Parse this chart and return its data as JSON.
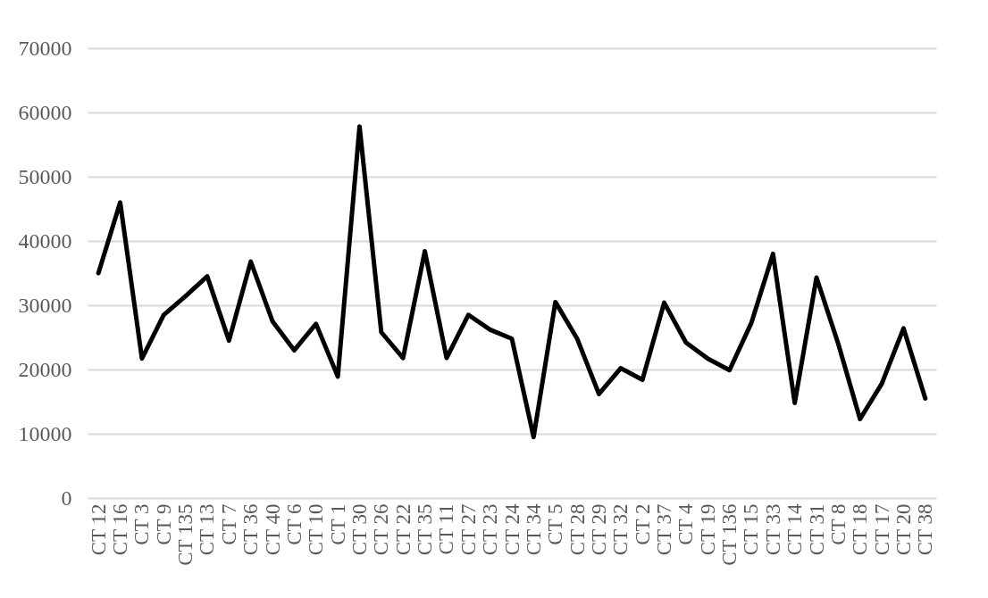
{
  "chart_data": {
    "type": "line",
    "categories": [
      "CT 12",
      "CT 16",
      "CT 3",
      "CT 9",
      "CT 135",
      "CT 13",
      "CT 7",
      "CT 36",
      "CT 40",
      "CT 6",
      "CT 10",
      "CT 1",
      "CT 30",
      "CT 26",
      "CT 22",
      "CT 35",
      "CT 11",
      "CT 27",
      "CT 23",
      "CT 24",
      "CT 34",
      "CT 5",
      "CT 28",
      "CT 29",
      "CT 32",
      "CT 2",
      "CT 37",
      "CT 4",
      "CT 19",
      "CT 136",
      "CT 15",
      "CT 33",
      "CT 14",
      "CT 31",
      "CT 8",
      "CT 18",
      "CT 17",
      "CT 20",
      "CT 38"
    ],
    "series": [
      {
        "color": "#000000",
        "values": [
          35000,
          46000,
          21700,
          28500,
          31400,
          34500,
          24500,
          36800,
          27500,
          23000,
          27100,
          18900,
          57800,
          25800,
          21800,
          38400,
          21800,
          28500,
          26200,
          24800,
          9500,
          30500,
          24800,
          16200,
          20200,
          18400,
          30400,
          24200,
          21700,
          19900,
          27200,
          38000,
          14800,
          34300,
          24000,
          12300,
          17800,
          26400,
          15500
        ]
      }
    ],
    "ylim": [
      0,
      70000
    ],
    "yticks": [
      0,
      10000,
      20000,
      30000,
      40000,
      50000,
      60000,
      70000
    ],
    "grid": "y",
    "legend": false,
    "marker": "none",
    "line_style": "solid"
  }
}
